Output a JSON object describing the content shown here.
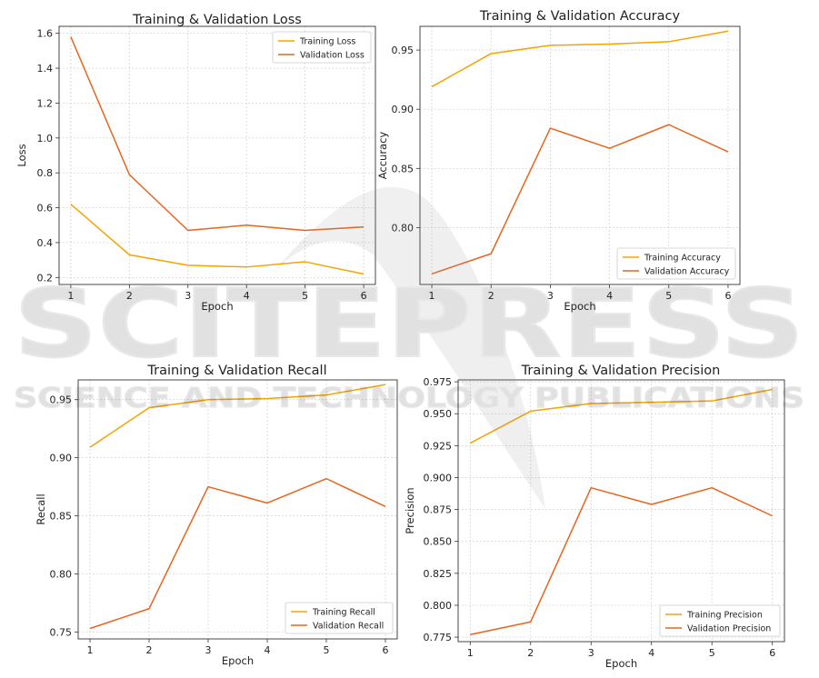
{
  "colors": {
    "training": "#f5a300",
    "validation": "#e8641c"
  },
  "watermark": {
    "main": "SCITEPRESS",
    "sub": "SCIENCE AND TECHNOLOGY PUBLICATIONS"
  },
  "chart_data": [
    {
      "type": "line",
      "title": "Training & Validation Loss",
      "xlabel": "Epoch",
      "ylabel": "Loss",
      "x": [
        1,
        2,
        3,
        4,
        5,
        6
      ],
      "xlim": [
        0.8,
        6.2
      ],
      "ylim": [
        0.16,
        1.64
      ],
      "yticks": [
        0.2,
        0.4,
        0.6,
        0.8,
        1.0,
        1.2,
        1.4,
        1.6
      ],
      "ytick_labels": [
        "0.2",
        "0.4",
        "0.6",
        "0.8",
        "1.0",
        "1.2",
        "1.4",
        "1.6"
      ],
      "grid": true,
      "legend": "top-right",
      "series": [
        {
          "name": "Training Loss",
          "values": [
            0.62,
            0.33,
            0.27,
            0.26,
            0.29,
            0.22
          ]
        },
        {
          "name": "Validation Loss",
          "values": [
            1.58,
            0.79,
            0.47,
            0.5,
            0.47,
            0.49
          ]
        }
      ]
    },
    {
      "type": "line",
      "title": "Training & Validation Accuracy",
      "xlabel": "Epoch",
      "ylabel": "Accuracy",
      "x": [
        1,
        2,
        3,
        4,
        5,
        6
      ],
      "xlim": [
        0.8,
        6.2
      ],
      "ylim": [
        0.752,
        0.97
      ],
      "yticks": [
        0.8,
        0.85,
        0.9,
        0.95
      ],
      "ytick_labels": [
        "0.80",
        "0.85",
        "0.90",
        "0.95"
      ],
      "grid": true,
      "legend": "bottom-right",
      "series": [
        {
          "name": "Training Accuracy",
          "values": [
            0.919,
            0.947,
            0.954,
            0.955,
            0.957,
            0.966
          ]
        },
        {
          "name": "Validation Accuracy",
          "values": [
            0.761,
            0.778,
            0.884,
            0.867,
            0.887,
            0.864
          ]
        }
      ]
    },
    {
      "type": "line",
      "title": "Training & Validation Recall",
      "xlabel": "Epoch",
      "ylabel": "Recall",
      "x": [
        1,
        2,
        3,
        4,
        5,
        6
      ],
      "xlim": [
        0.8,
        6.2
      ],
      "ylim": [
        0.744,
        0.967
      ],
      "yticks": [
        0.75,
        0.8,
        0.85,
        0.9,
        0.95
      ],
      "ytick_labels": [
        "0.75",
        "0.80",
        "0.85",
        "0.90",
        "0.95"
      ],
      "grid": true,
      "legend": "bottom-right",
      "series": [
        {
          "name": "Training Recall",
          "values": [
            0.909,
            0.943,
            0.95,
            0.951,
            0.954,
            0.963
          ]
        },
        {
          "name": "Validation Recall",
          "values": [
            0.753,
            0.77,
            0.875,
            0.861,
            0.882,
            0.858
          ]
        }
      ]
    },
    {
      "type": "line",
      "title": "Training & Validation Precision",
      "xlabel": "Epoch",
      "ylabel": "Precision",
      "x": [
        1,
        2,
        3,
        4,
        5,
        6
      ],
      "xlim": [
        0.8,
        6.2
      ],
      "ylim": [
        0.7715,
        0.9765
      ],
      "yticks": [
        0.775,
        0.8,
        0.825,
        0.85,
        0.875,
        0.9,
        0.925,
        0.95,
        0.975
      ],
      "ytick_labels": [
        "0.775",
        "0.800",
        "0.825",
        "0.850",
        "0.875",
        "0.900",
        "0.925",
        "0.950",
        "0.975"
      ],
      "grid": true,
      "legend": "bottom-right",
      "series": [
        {
          "name": "Training Precision",
          "values": [
            0.927,
            0.952,
            0.958,
            0.959,
            0.96,
            0.969
          ]
        },
        {
          "name": "Validation Precision",
          "values": [
            0.777,
            0.787,
            0.892,
            0.879,
            0.892,
            0.87
          ]
        }
      ]
    }
  ]
}
